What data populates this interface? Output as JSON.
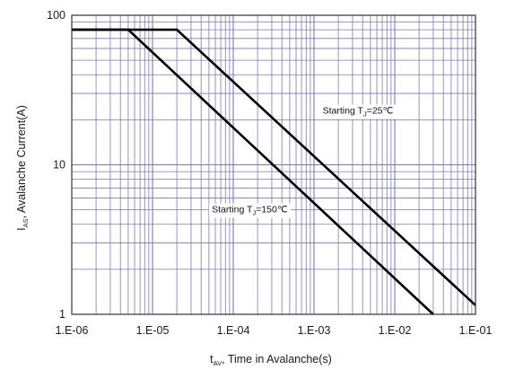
{
  "chart_data": {
    "type": "line",
    "title": "",
    "xlabel": {
      "main": "t",
      "sub": "AV",
      "rest": ", Time in Avalanche(s)"
    },
    "ylabel": {
      "main": "I",
      "sub": "AS",
      "rest": ", Avalanche Current(A)"
    },
    "xscale": "log",
    "yscale": "log",
    "xlim": [
      1e-06,
      0.1
    ],
    "ylim": [
      1,
      100
    ],
    "grid": true,
    "x_tick_labels": [
      "1.E-06",
      "1.E-05",
      "1.E-04",
      "1.E-03",
      "1.E-02",
      "1.E-01"
    ],
    "y_tick_labels": [
      "1",
      "10",
      "100"
    ],
    "series": [
      {
        "name": "Starting Tj=25℃",
        "x": [
          1e-06,
          2e-05,
          0.1
        ],
        "y": [
          80,
          80,
          1.15
        ]
      },
      {
        "name": "Starting Tj=150℃",
        "x": [
          1e-06,
          5e-06,
          0.03
        ],
        "y": [
          80,
          80,
          1
        ]
      }
    ],
    "annotations": [
      {
        "text_main": "Starting T",
        "text_sub": "J",
        "text_rest": "=25℃",
        "x": 0.0035,
        "y": 22
      },
      {
        "text_main": "Starting T",
        "text_sub": "J",
        "text_rest": "=150℃",
        "x": 0.00016,
        "y": 4.8
      }
    ],
    "line_color": "#000000",
    "grid_color": "#7a7aa8"
  }
}
